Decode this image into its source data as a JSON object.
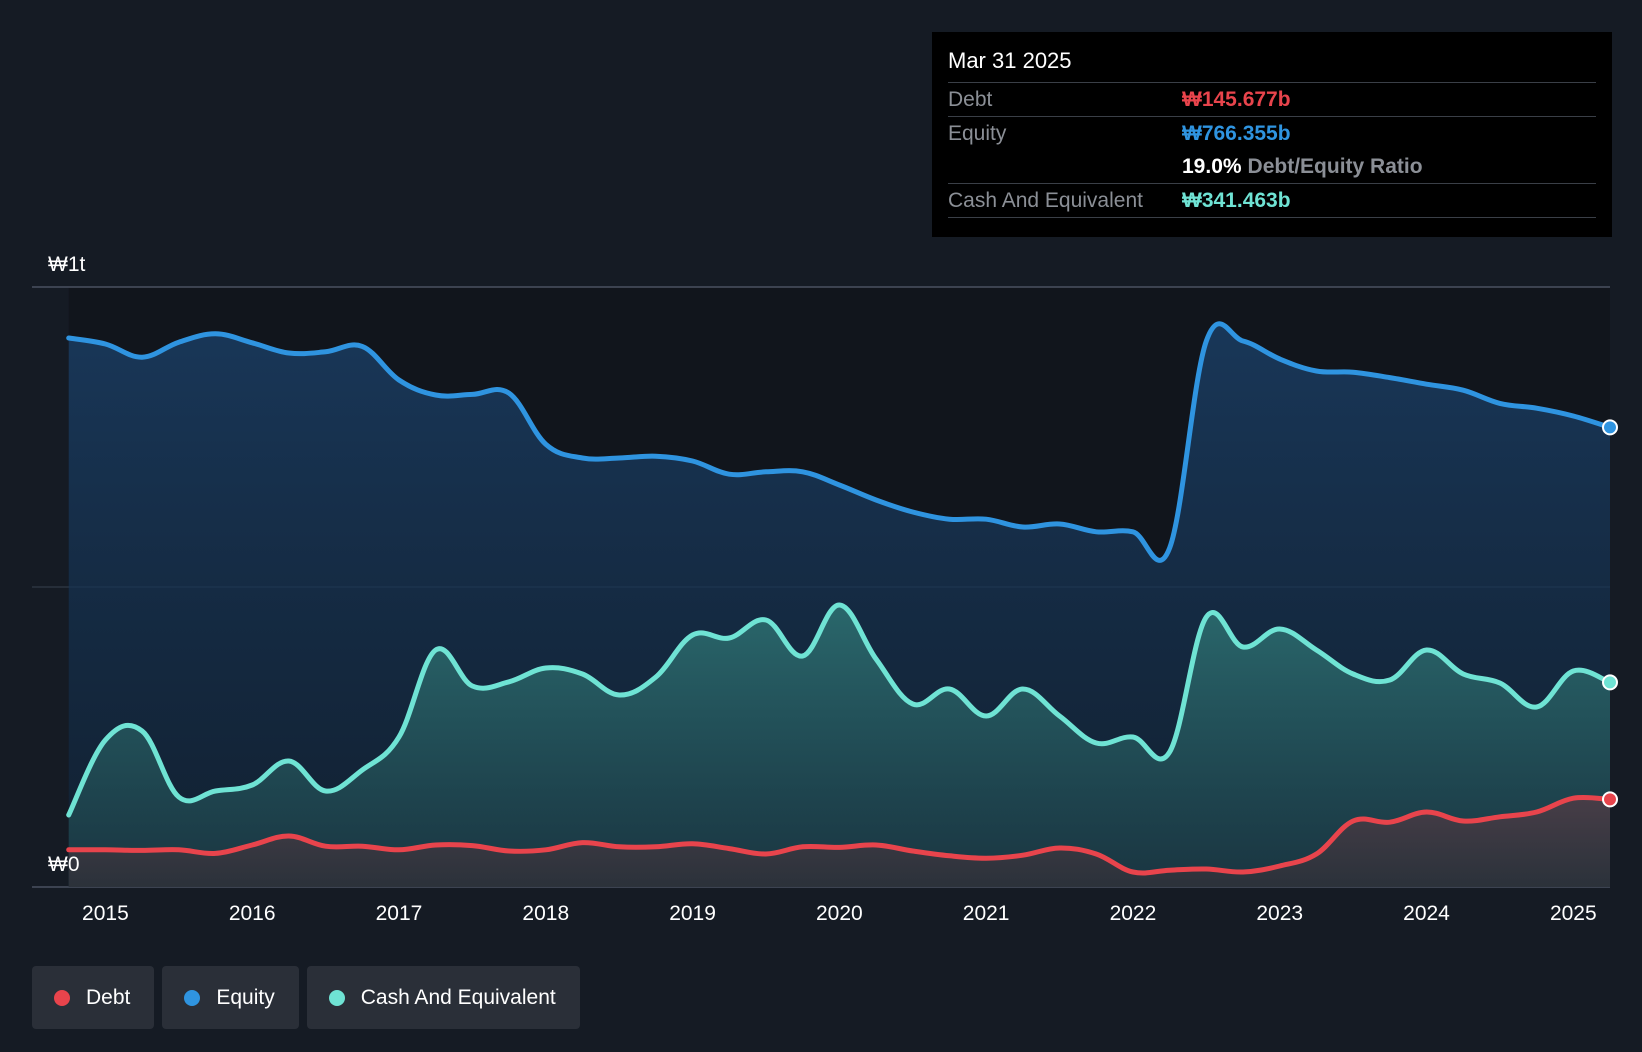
{
  "tooltip": {
    "date": "Mar 31 2025",
    "debt_label": "Debt",
    "debt_value": "₩145.677b",
    "equity_label": "Equity",
    "equity_value": "₩766.355b",
    "ratio_value": "19.0%",
    "ratio_label": "Debt/Equity Ratio",
    "cash_label": "Cash And Equivalent",
    "cash_value": "₩341.463b"
  },
  "legend": [
    {
      "label": "Debt",
      "color": "#e8444c"
    },
    {
      "label": "Equity",
      "color": "#2f94e0"
    },
    {
      "label": "Cash And Equivalent",
      "color": "#6fe3d4"
    }
  ],
  "chart_data": {
    "type": "area",
    "y_tick_labels": [
      "₩0",
      "₩1t"
    ],
    "ylim": [
      0,
      1000
    ],
    "y_unit": "₩b",
    "xlim": [
      2014.5,
      2025.25
    ],
    "x_ticks": [
      2015,
      2016,
      2017,
      2018,
      2019,
      2020,
      2021,
      2022,
      2023,
      2024,
      2025
    ],
    "x_tick_labels": [
      "2015",
      "2016",
      "2017",
      "2018",
      "2019",
      "2020",
      "2021",
      "2022",
      "2023",
      "2024",
      "2025"
    ],
    "grid": true,
    "legend_position": "bottom-left",
    "series": [
      {
        "name": "Equity",
        "color": "#2f94e0",
        "points": [
          [
            2014.75,
            915
          ],
          [
            2015.0,
            905
          ],
          [
            2015.25,
            883
          ],
          [
            2015.5,
            908
          ],
          [
            2015.75,
            922
          ],
          [
            2016.0,
            907
          ],
          [
            2016.25,
            890
          ],
          [
            2016.5,
            892
          ],
          [
            2016.75,
            901
          ],
          [
            2017.0,
            845
          ],
          [
            2017.25,
            820
          ],
          [
            2017.5,
            821
          ],
          [
            2017.75,
            823
          ],
          [
            2018.0,
            738
          ],
          [
            2018.25,
            715
          ],
          [
            2018.5,
            715
          ],
          [
            2018.75,
            718
          ],
          [
            2019.0,
            710
          ],
          [
            2019.25,
            688
          ],
          [
            2019.5,
            692
          ],
          [
            2019.75,
            692
          ],
          [
            2020.0,
            670
          ],
          [
            2020.25,
            645
          ],
          [
            2020.5,
            625
          ],
          [
            2020.75,
            613
          ],
          [
            2021.0,
            613
          ],
          [
            2021.25,
            600
          ],
          [
            2021.5,
            605
          ],
          [
            2021.75,
            592
          ],
          [
            2022.0,
            592
          ],
          [
            2022.25,
            565
          ],
          [
            2022.5,
            910
          ],
          [
            2022.75,
            910
          ],
          [
            2023.0,
            880
          ],
          [
            2023.25,
            860
          ],
          [
            2023.5,
            858
          ],
          [
            2023.75,
            849
          ],
          [
            2024.0,
            838
          ],
          [
            2024.25,
            828
          ],
          [
            2024.5,
            806
          ],
          [
            2024.75,
            798
          ],
          [
            2025.0,
            785
          ],
          [
            2025.25,
            766
          ]
        ]
      },
      {
        "name": "Cash And Equivalent",
        "color": "#6fe3d4",
        "points": [
          [
            2014.75,
            120
          ],
          [
            2015.0,
            245
          ],
          [
            2015.25,
            260
          ],
          [
            2015.5,
            150
          ],
          [
            2015.75,
            160
          ],
          [
            2016.0,
            170
          ],
          [
            2016.25,
            210
          ],
          [
            2016.5,
            160
          ],
          [
            2016.75,
            195
          ],
          [
            2017.0,
            250
          ],
          [
            2017.25,
            395
          ],
          [
            2017.5,
            335
          ],
          [
            2017.75,
            342
          ],
          [
            2018.0,
            365
          ],
          [
            2018.25,
            355
          ],
          [
            2018.5,
            320
          ],
          [
            2018.75,
            350
          ],
          [
            2019.0,
            420
          ],
          [
            2019.25,
            415
          ],
          [
            2019.5,
            445
          ],
          [
            2019.75,
            385
          ],
          [
            2020.0,
            470
          ],
          [
            2020.25,
            380
          ],
          [
            2020.5,
            305
          ],
          [
            2020.75,
            330
          ],
          [
            2021.0,
            285
          ],
          [
            2021.25,
            330
          ],
          [
            2021.5,
            285
          ],
          [
            2021.75,
            240
          ],
          [
            2022.0,
            250
          ],
          [
            2022.25,
            225
          ],
          [
            2022.5,
            450
          ],
          [
            2022.75,
            400
          ],
          [
            2023.0,
            430
          ],
          [
            2023.25,
            395
          ],
          [
            2023.5,
            355
          ],
          [
            2023.75,
            345
          ],
          [
            2024.0,
            395
          ],
          [
            2024.25,
            355
          ],
          [
            2024.5,
            340
          ],
          [
            2024.75,
            300
          ],
          [
            2025.0,
            360
          ],
          [
            2025.25,
            341
          ]
        ]
      },
      {
        "name": "Debt",
        "color": "#e8444c",
        "points": [
          [
            2014.75,
            62
          ],
          [
            2015.0,
            62
          ],
          [
            2015.25,
            61
          ],
          [
            2015.5,
            62
          ],
          [
            2015.75,
            56
          ],
          [
            2016.0,
            70
          ],
          [
            2016.25,
            85
          ],
          [
            2016.5,
            68
          ],
          [
            2016.75,
            68
          ],
          [
            2017.0,
            62
          ],
          [
            2017.25,
            70
          ],
          [
            2017.5,
            69
          ],
          [
            2017.75,
            60
          ],
          [
            2018.0,
            62
          ],
          [
            2018.25,
            74
          ],
          [
            2018.5,
            67
          ],
          [
            2018.75,
            67
          ],
          [
            2019.0,
            72
          ],
          [
            2019.25,
            64
          ],
          [
            2019.5,
            55
          ],
          [
            2019.75,
            67
          ],
          [
            2020.0,
            66
          ],
          [
            2020.25,
            70
          ],
          [
            2020.5,
            60
          ],
          [
            2020.75,
            52
          ],
          [
            2021.0,
            48
          ],
          [
            2021.25,
            53
          ],
          [
            2021.5,
            65
          ],
          [
            2021.75,
            55
          ],
          [
            2022.0,
            25
          ],
          [
            2022.25,
            28
          ],
          [
            2022.5,
            30
          ],
          [
            2022.75,
            25
          ],
          [
            2023.0,
            35
          ],
          [
            2023.25,
            55
          ],
          [
            2023.5,
            110
          ],
          [
            2023.75,
            108
          ],
          [
            2024.0,
            125
          ],
          [
            2024.25,
            110
          ],
          [
            2024.5,
            117
          ],
          [
            2024.75,
            125
          ],
          [
            2025.0,
            148
          ],
          [
            2025.25,
            146
          ]
        ]
      }
    ]
  }
}
